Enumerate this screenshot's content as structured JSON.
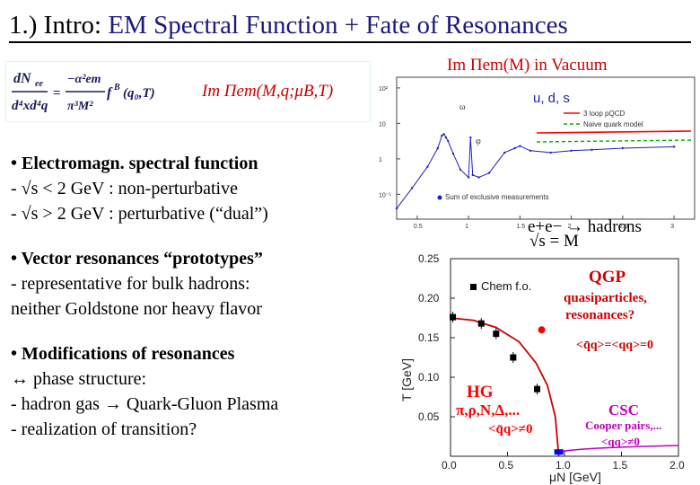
{
  "slide": {
    "title_num": "1.) Intro:",
    "title_rest": "EM Spectral Function + Fate of Resonances"
  },
  "formula": {
    "lhs_text": "dNee/d4xd4q = −α²em/π³M² f B(q0,T)",
    "rhs_text": "Im Πem(M,q;μB,T)"
  },
  "bullets": {
    "b1_head": "•  Electromagn. spectral function",
    "b1_l1": " - √s < 2 GeV : non-perturbative",
    "b1_l2": " - √s > 2 GeV : perturbative (“dual”)",
    "b2_head": "• Vector resonances “prototypes”",
    "b2_l1": " - representative for bulk hadrons:",
    "b2_l2": "   neither Goldstone nor heavy flavor",
    "b3_head": "• Modifications of resonances",
    "b3_l1": "   ↔ phase structure:",
    "b3_l2": "  - hadron gas → Quark-Gluon Plasma",
    "b3_l3": "  - realization of transition?"
  },
  "top_plot": {
    "title": "Im Πem(M) in Vacuum",
    "legend_uds": "u, d, s",
    "legend_pqcd": "3 loop pQCD",
    "legend_quark": "Naive quark model",
    "legend_excl": "Sum of exclusive measurements",
    "process": "e+e− → hadrons",
    "xaxis_label": "√s = M",
    "colors": {
      "pqcd": "#ff0000",
      "quark": "#00b000",
      "data": "#2020c0"
    }
  },
  "chart_data": [
    {
      "type": "line",
      "title": "Im Πem(M) in Vacuum",
      "xlabel": "√s = M",
      "ylabel": "",
      "x_ticks": [
        "0.5",
        "1",
        "1.5",
        "2",
        "2.5",
        "3"
      ],
      "y_ticks": [
        "10⁻¹",
        "1",
        "10",
        "10²"
      ],
      "xlim": [
        0.3,
        3.2
      ],
      "ylog": true,
      "series": [
        {
          "name": "Sum of exclusive measurements",
          "x": [
            0.3,
            0.45,
            0.6,
            0.7,
            0.74,
            0.76,
            0.78,
            0.8,
            0.85,
            0.92,
            1.0,
            1.019,
            1.04,
            1.1,
            1.2,
            1.35,
            1.45,
            1.5,
            1.6,
            1.8,
            2.0,
            2.2,
            2.5,
            3.0
          ],
          "y": [
            0.04,
            0.15,
            0.6,
            2.0,
            4.5,
            5.0,
            4.0,
            3.2,
            1.4,
            0.5,
            0.3,
            4.0,
            0.35,
            0.3,
            0.4,
            1.5,
            2.0,
            2.3,
            1.7,
            1.5,
            1.7,
            1.8,
            2.0,
            2.2
          ]
        },
        {
          "name": "3 loop pQCD",
          "x": [
            1.2,
            1.6,
            2.0,
            2.5,
            3.2
          ],
          "y": [
            2.05,
            2.07,
            2.08,
            2.1,
            2.12
          ]
        },
        {
          "name": "Naive quark model",
          "x": [
            1.2,
            1.6,
            2.0,
            2.5,
            3.2
          ],
          "y": [
            1.95,
            1.96,
            1.97,
            1.98,
            2.0
          ]
        }
      ]
    },
    {
      "type": "scatter",
      "title": "",
      "xlabel": "μN [GeV]",
      "ylabel": "T [GeV]",
      "x_ticks": [
        "0.0",
        "0.5",
        "1.0",
        "1.5",
        "2.0"
      ],
      "y_ticks": [
        "0.05",
        "0.10",
        "0.15",
        "0.20",
        "0.25"
      ],
      "xlim": [
        0.0,
        2.0
      ],
      "ylim": [
        0.0,
        0.25
      ],
      "series": [
        {
          "name": "Chem f.o.",
          "x": [
            0.02,
            0.27,
            0.4,
            0.55,
            0.76
          ],
          "y": [
            0.176,
            0.168,
            0.155,
            0.125,
            0.085
          ]
        },
        {
          "name": "",
          "x": [
            0.0,
            0.2,
            0.4,
            0.6,
            0.75,
            0.85,
            0.92,
            0.95
          ],
          "y": [
            0.175,
            0.172,
            0.163,
            0.145,
            0.118,
            0.09,
            0.05,
            0.0
          ]
        }
      ],
      "points": [
        {
          "x": 0.8,
          "y": 0.16,
          "color": "#ff0000"
        },
        {
          "x": 0.95,
          "y": 0.002,
          "color": "#0000ff"
        }
      ]
    }
  ],
  "phase": {
    "legend_chem": "Chem f.o.",
    "qgp": "QGP",
    "qgp_sub1": "quasiparticles,",
    "qgp_sub2": "resonances?",
    "cond_qgp": "<q̄q>=<qq>=0",
    "hg": "HG",
    "hg_particles": "π,ρ,N,Δ,...",
    "hg_cond": "<q̄q>≠0",
    "csc": "CSC",
    "csc_sub": "Cooper pairs,...",
    "csc_cond": "<qq>≠0",
    "xlabel": "μN [GeV]",
    "ylabel": "T [GeV]",
    "colors": {
      "hg": "#ff0000",
      "qgp": "#cc0000",
      "csc": "#c000c0",
      "line": "#cc0000"
    }
  }
}
